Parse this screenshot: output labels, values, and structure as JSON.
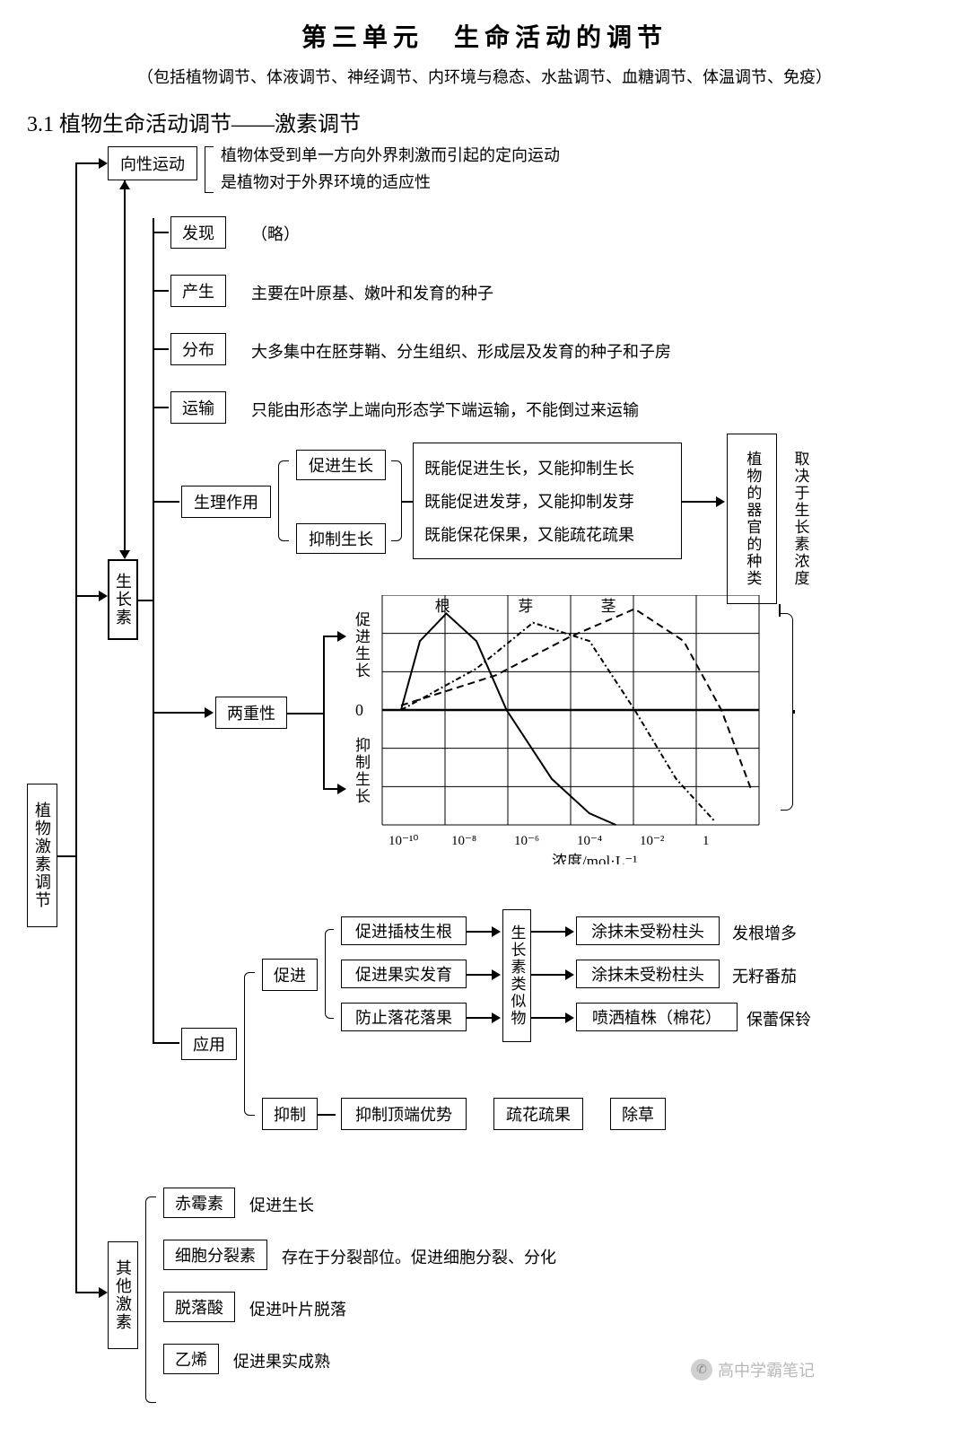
{
  "header": {
    "title": "第三单元　生命活动的调节",
    "subtitle": "（包括植物调节、体液调节、神经调节、内环境与稳态、水盐调节、血糖调节、体温调节、免疫）",
    "section": "3.1 植物生命活动调节——激素调节"
  },
  "nodes": {
    "root": "植物激素调节",
    "tropism": "向性运动",
    "tropism_def1": "植物体受到单一方向外界刺激而引起的定向运动",
    "tropism_def2": "是植物对于外界环境的适应性",
    "auxin": "生长素",
    "discover": "发现",
    "discover_txt": "（略）",
    "produce": "产生",
    "produce_txt": "主要在叶原基、嫩叶和发育的种子",
    "distrib": "分布",
    "distrib_txt": "大多集中在胚芽鞘、分生组织、形成层及发育的种子和子房",
    "transport": "运输",
    "transport_txt": "只能由形态学上端向形态学下端运输，不能倒过来运输",
    "physio": "生理作用",
    "promote_growth": "促进生长",
    "inhibit_growth": "抑制生长",
    "effect1": "既能促进生长，又能抑制生长",
    "effect2": "既能促进发芽，又能抑制发芽",
    "effect3": "既能保花保果，又能疏花疏果",
    "depend_organ": "植物的器官的种类",
    "depend_conc": "取决于生长素浓度",
    "duality": "两重性",
    "chart": {
      "ylabel_top": "促进生长",
      "ylabel_zero": "0",
      "ylabel_bot": "抑制生长",
      "series": [
        "根",
        "芽",
        "茎"
      ],
      "xticks": [
        "10⁻¹⁰",
        "10⁻⁸",
        "10⁻⁶",
        "10⁻⁴",
        "10⁻²",
        "1"
      ],
      "xlabel": "浓度/mol·L⁻¹",
      "grid_cols": 6,
      "grid_rows_top": 3,
      "grid_rows_bot": 3,
      "colors": {
        "grid": "#000000",
        "bg": "#ffffff"
      },
      "curves": {
        "root": {
          "style": "solid",
          "pts": [
            [
              0.05,
              0.5
            ],
            [
              0.1,
              0.2
            ],
            [
              0.17,
              0.08
            ],
            [
              0.25,
              0.2
            ],
            [
              0.33,
              0.5
            ],
            [
              0.45,
              0.8
            ],
            [
              0.55,
              0.95
            ],
            [
              0.62,
              1.0
            ]
          ]
        },
        "bud": {
          "style": "dashdot",
          "pts": [
            [
              0.05,
              0.5
            ],
            [
              0.25,
              0.32
            ],
            [
              0.4,
              0.12
            ],
            [
              0.55,
              0.2
            ],
            [
              0.67,
              0.5
            ],
            [
              0.78,
              0.8
            ],
            [
              0.88,
              0.98
            ]
          ]
        },
        "stem": {
          "style": "dashed",
          "pts": [
            [
              0.05,
              0.48
            ],
            [
              0.3,
              0.35
            ],
            [
              0.5,
              0.18
            ],
            [
              0.67,
              0.06
            ],
            [
              0.8,
              0.2
            ],
            [
              0.9,
              0.5
            ],
            [
              0.98,
              0.85
            ]
          ]
        }
      }
    },
    "apply": "应用",
    "apply_promote": "促进",
    "apply_inhibit": "抑制",
    "ap1": "促进插枝生根",
    "ap2": "促进果实发育",
    "ap3": "防止落花落果",
    "analog": "生长素类似物",
    "r1a": "涂抹未受粉柱头",
    "r1b": "发根增多",
    "r2a": "涂抹未受粉柱头",
    "r2b": "无籽番茄",
    "r3a": "喷洒植株（棉花）",
    "r3b": "保蕾保铃",
    "in1": "抑制顶端优势",
    "in2": "疏花疏果",
    "in3": "除草",
    "other": "其他激素",
    "h1": "赤霉素",
    "h1t": "促进生长",
    "h2": "细胞分裂素",
    "h2t": "存在于分裂部位。促进细胞分裂、分化",
    "h3": "脱落酸",
    "h3t": "促进叶片脱落",
    "h4": "乙烯",
    "h4t": "促进果实成熟"
  },
  "watermark": "高中学霸笔记"
}
